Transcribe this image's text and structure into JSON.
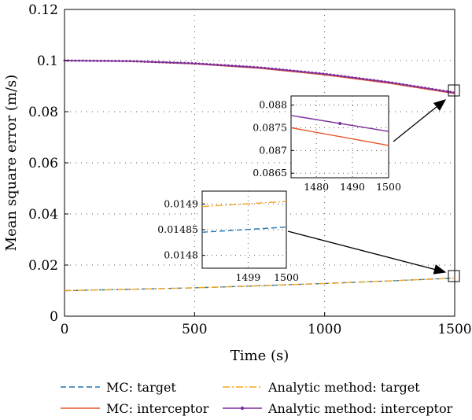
{
  "chart_data": {
    "type": "line",
    "xlabel": "Time (s)",
    "ylabel": "Mean square error (m/s)",
    "xlim": [
      0,
      1500
    ],
    "ylim": [
      0,
      0.12
    ],
    "xticks": [
      0,
      500,
      1000,
      1500
    ],
    "xtick_labels": [
      "0",
      "500",
      "1000",
      "1500"
    ],
    "yticks": [
      0,
      0.02,
      0.04,
      0.06,
      0.08,
      0.1,
      0.12
    ],
    "ytick_labels": [
      "0",
      "0.02",
      "0.04",
      "0.06",
      "0.08",
      "0.1",
      "0.12"
    ],
    "grid": true,
    "legend_position": "below plot",
    "series": [
      {
        "name": "MC: target",
        "color": "#1f77b4",
        "style": "dashed",
        "x": [
          0,
          250,
          500,
          750,
          1000,
          1250,
          1500
        ],
        "y": [
          0.01,
          0.0105,
          0.0111,
          0.0119,
          0.0128,
          0.0138,
          0.0149
        ]
      },
      {
        "name": "MC: interceptor",
        "color": "#e8562a",
        "style": "solid",
        "x": [
          0,
          250,
          500,
          750,
          1000,
          1250,
          1500
        ],
        "y": [
          0.1,
          0.0997,
          0.0987,
          0.097,
          0.0944,
          0.0911,
          0.0871
        ]
      },
      {
        "name": "Analytic method: target",
        "color": "#f5a623",
        "style": "dashdot",
        "x": [
          0,
          250,
          500,
          750,
          1000,
          1250,
          1500
        ],
        "y": [
          0.01,
          0.0105,
          0.0111,
          0.0119,
          0.0128,
          0.0138,
          0.01492
        ]
      },
      {
        "name": "Analytic method: interceptor",
        "color": "#7b2d9e",
        "style": "solid-markers",
        "x": [
          0,
          250,
          500,
          750,
          1000,
          1250,
          1500
        ],
        "y": [
          0.1,
          0.0998,
          0.0989,
          0.0973,
          0.0948,
          0.0915,
          0.08745
        ]
      }
    ],
    "insets": [
      {
        "xlim": [
          1473,
          1500
        ],
        "ylim": [
          0.0864,
          0.0882
        ],
        "xticks": [
          1480,
          1490,
          1500
        ],
        "xtick_labels": [
          "1480",
          "1490",
          "1500"
        ],
        "yticks": [
          0.0865,
          0.087,
          0.0875,
          0.088
        ],
        "ytick_labels": [
          "0.0865",
          "0.087",
          "0.0875",
          "0.088"
        ],
        "series": [
          {
            "name": "MC: interceptor",
            "x": [
              1473,
              1500
            ],
            "y": [
              0.0875,
              0.08711
            ]
          },
          {
            "name": "Analytic method: interceptor",
            "x": [
              1473,
              1500
            ],
            "y": [
              0.08777,
              0.08742
            ]
          }
        ]
      },
      {
        "xlim": [
          1497.8,
          1500
        ],
        "ylim": [
          0.014775,
          0.014925
        ],
        "xticks": [
          1499,
          1500
        ],
        "xtick_labels": [
          "1499",
          "1500"
        ],
        "yticks": [
          0.0148,
          0.01485,
          0.0149
        ],
        "ytick_labels": [
          "0.0148",
          "0.01485",
          "0.0149"
        ],
        "series": [
          {
            "name": "MC: target",
            "x": [
              1497.8,
              1500
            ],
            "y": [
              0.014845,
              0.014855
            ]
          },
          {
            "name": "Analytic method: target",
            "x": [
              1497.8,
              1500
            ],
            "y": [
              0.014895,
              0.014905
            ]
          }
        ]
      }
    ]
  }
}
